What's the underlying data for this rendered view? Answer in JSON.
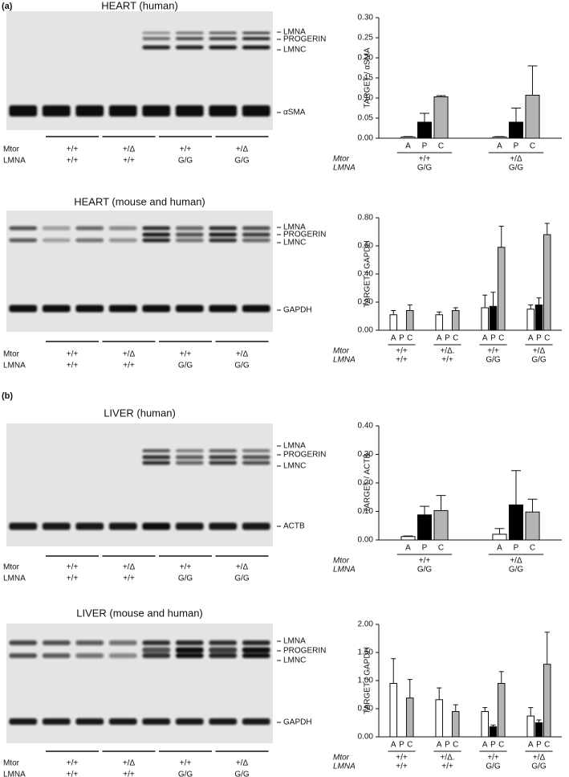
{
  "panel_labels": [
    "(a)",
    "(b)"
  ],
  "blots": [
    {
      "title": "HEART (human)",
      "bands": [
        "LMNA",
        "PROGERIN",
        "LMNC",
        "αSMA"
      ],
      "rows": [
        {
          "name": "Mtor",
          "labels": [
            "+/+",
            "+/Δ",
            "+/+",
            "+/Δ"
          ]
        },
        {
          "name": "LMNA",
          "labels": [
            "+/+",
            "+/+",
            "G/G",
            "G/G"
          ]
        }
      ]
    },
    {
      "title": "HEART (mouse and human)",
      "bands": [
        "LMNA",
        "PROGERIN",
        "LMNC",
        "GAPDH"
      ],
      "rows": [
        {
          "name": "Mtor",
          "labels": [
            "+/+",
            "+/Δ",
            "+/+",
            "+/Δ"
          ]
        },
        {
          "name": "LMNA",
          "labels": [
            "+/+",
            "+/+",
            "G/G",
            "G/G"
          ]
        }
      ]
    },
    {
      "title": "LIVER (human)",
      "bands": [
        "LMNA",
        "PROGERIN",
        "LMNC",
        "ACTB"
      ],
      "rows": [
        {
          "name": "Mtor",
          "labels": [
            "+/+",
            "+/Δ",
            "+/+",
            "+/Δ"
          ]
        },
        {
          "name": "LMNA",
          "labels": [
            "+/+",
            "+/+",
            "G/G",
            "G/G"
          ]
        }
      ]
    },
    {
      "title": "LIVER (mouse and human)",
      "bands": [
        "LMNA",
        "PROGERIN",
        "LMNC",
        "GAPDH"
      ],
      "rows": [
        {
          "name": "Mtor",
          "labels": [
            "+/+",
            "+/Δ",
            "+/+",
            "+/Δ"
          ]
        },
        {
          "name": "LMNA",
          "labels": [
            "+/+",
            "+/+",
            "G/G",
            "G/G"
          ]
        }
      ]
    }
  ],
  "chart_data": [
    {
      "type": "bar",
      "y_label": "TARGET / αSMA",
      "category_axis_names": [
        "Mtor",
        "LMNA"
      ],
      "categories": [
        "+/+",
        "+/Δ"
      ],
      "subcategories": [
        "G/G",
        "G/G"
      ],
      "series": [
        {
          "name": "A",
          "color": "#ffffff",
          "values": [
            0.003,
            0.003
          ],
          "errors": [
            0.001,
            0.001
          ]
        },
        {
          "name": "P",
          "color": "#000000",
          "values": [
            0.04,
            0.04
          ],
          "errors": [
            0.022,
            0.035
          ]
        },
        {
          "name": "C",
          "color": "#b4b4b4",
          "values": [
            0.103,
            0.107
          ],
          "errors": [
            0.003,
            0.073
          ]
        }
      ],
      "ylim": [
        0,
        0.3
      ],
      "yticks": [
        {
          "value": 0,
          "label": "0.00"
        },
        {
          "value": 0.05,
          "label": "0.05"
        },
        {
          "value": 0.1,
          "label": "0.10"
        },
        {
          "value": 0.15,
          "label": "0.15"
        },
        {
          "value": 0.2,
          "label": "0.20"
        },
        {
          "value": 0.25,
          "label": "0.25"
        },
        {
          "value": 0.3,
          "label": "0.30"
        }
      ]
    },
    {
      "type": "bar",
      "y_label": "TARGET / GAPDH",
      "category_axis_names": [
        "Mtor",
        "LMNA"
      ],
      "categories": [
        "+/+",
        "+/Δ.",
        "+/+",
        "+/Δ"
      ],
      "subcategories": [
        "+/+",
        "+/+",
        "G/G",
        "G/G"
      ],
      "series": [
        {
          "name": "A",
          "color": "#ffffff",
          "values": [
            0.11,
            0.11,
            0.16,
            0.15
          ],
          "errors": [
            0.03,
            0.02,
            0.09,
            0.03
          ]
        },
        {
          "name": "P",
          "color": "#000000",
          "values": [
            null,
            null,
            0.17,
            0.18
          ],
          "errors": [
            null,
            null,
            0.1,
            0.05
          ]
        },
        {
          "name": "C",
          "color": "#b4b4b4",
          "values": [
            0.14,
            0.14,
            0.59,
            0.68
          ],
          "errors": [
            0.04,
            0.02,
            0.15,
            0.08
          ]
        }
      ],
      "ylim": [
        0,
        0.8
      ],
      "yticks": [
        {
          "value": 0,
          "label": "0.00"
        },
        {
          "value": 0.2,
          "label": "0.20"
        },
        {
          "value": 0.4,
          "label": "0.40"
        },
        {
          "value": 0.6,
          "label": "0.60"
        },
        {
          "value": 0.8,
          "label": "0.80"
        }
      ]
    },
    {
      "type": "bar",
      "y_label": "TARGET / ACTB",
      "category_axis_names": [
        "Mtor",
        "LMNA"
      ],
      "categories": [
        "+/+",
        "+/Δ"
      ],
      "subcategories": [
        "G/G",
        "G/G"
      ],
      "series": [
        {
          "name": "A",
          "color": "#ffffff",
          "values": [
            0.012,
            0.02
          ],
          "errors": [
            0.002,
            0.02
          ]
        },
        {
          "name": "P",
          "color": "#000000",
          "values": [
            0.088,
            0.123
          ],
          "errors": [
            0.03,
            0.12
          ]
        },
        {
          "name": "C",
          "color": "#b4b4b4",
          "values": [
            0.103,
            0.098
          ],
          "errors": [
            0.053,
            0.045
          ]
        }
      ],
      "ylim": [
        0,
        0.4
      ],
      "yticks": [
        {
          "value": 0,
          "label": "0.00"
        },
        {
          "value": 0.1,
          "label": "0.10"
        },
        {
          "value": 0.2,
          "label": "0.20"
        },
        {
          "value": 0.3,
          "label": "0.30"
        },
        {
          "value": 0.4,
          "label": "0.40"
        }
      ]
    },
    {
      "type": "bar",
      "y_label": "TARGET / GAPDH",
      "category_axis_names": [
        "Mtor",
        "LMNA"
      ],
      "categories": [
        "+/+",
        "+/Δ.",
        "+/+",
        "+/Δ"
      ],
      "subcategories": [
        "+/+",
        "+/+",
        "G/G",
        "G/G"
      ],
      "series": [
        {
          "name": "A",
          "color": "#ffffff",
          "values": [
            0.95,
            0.66,
            0.45,
            0.37
          ],
          "errors": [
            0.44,
            0.21,
            0.07,
            0.15
          ]
        },
        {
          "name": "P",
          "color": "#000000",
          "values": [
            null,
            null,
            0.18,
            0.25
          ],
          "errors": [
            null,
            null,
            0.03,
            0.05
          ]
        },
        {
          "name": "C",
          "color": "#b4b4b4",
          "values": [
            0.69,
            0.45,
            0.95,
            1.29
          ],
          "errors": [
            0.33,
            0.12,
            0.21,
            0.57
          ]
        }
      ],
      "ylim": [
        0,
        2
      ],
      "yticks": [
        {
          "value": 0,
          "label": "0.00"
        },
        {
          "value": 0.5,
          "label": "0.50"
        },
        {
          "value": 1,
          "label": "1.00"
        },
        {
          "value": 1.5,
          "label": "1.50"
        },
        {
          "value": 2,
          "label": "2.00"
        }
      ]
    }
  ]
}
